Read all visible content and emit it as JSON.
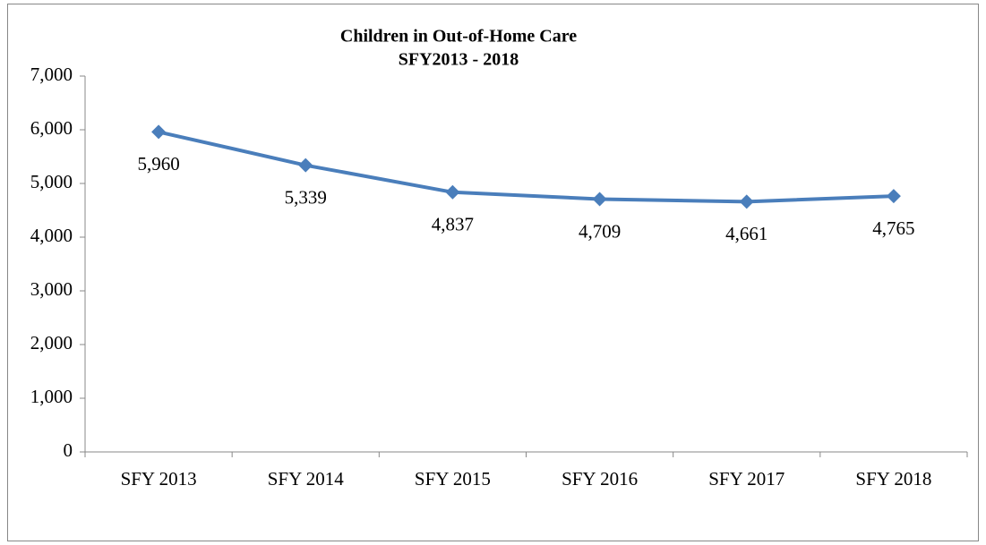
{
  "chart_data": {
    "type": "line",
    "title": "Children in Out-of-Home Care",
    "subtitle": "SFY2013 - 2018",
    "categories": [
      "SFY 2013",
      "SFY 2014",
      "SFY 2015",
      "SFY 2016",
      "SFY 2017",
      "SFY 2018"
    ],
    "series": [
      {
        "name": "Children in Out-of-Home Care",
        "color": "#4a7ebb",
        "values": [
          5960,
          5339,
          4837,
          4709,
          4661,
          4765
        ],
        "value_labels": [
          "5,960",
          "5,339",
          "4,837",
          "4,709",
          "4,661",
          "4,765"
        ]
      }
    ],
    "ylim": [
      0,
      7000
    ],
    "yticks": [
      0,
      {
        "value": 1000,
        "label": "1,000"
      },
      {
        "value": 2000,
        "label": "2,000"
      },
      {
        "value": 3000,
        "label": "3,000"
      },
      {
        "value": 4000,
        "label": "4,000"
      },
      {
        "value": 5000,
        "label": "5,000"
      },
      {
        "value": 6000,
        "label": "6,000"
      },
      {
        "value": 7000,
        "label": "7,000"
      }
    ],
    "grid": false,
    "legend": false
  }
}
